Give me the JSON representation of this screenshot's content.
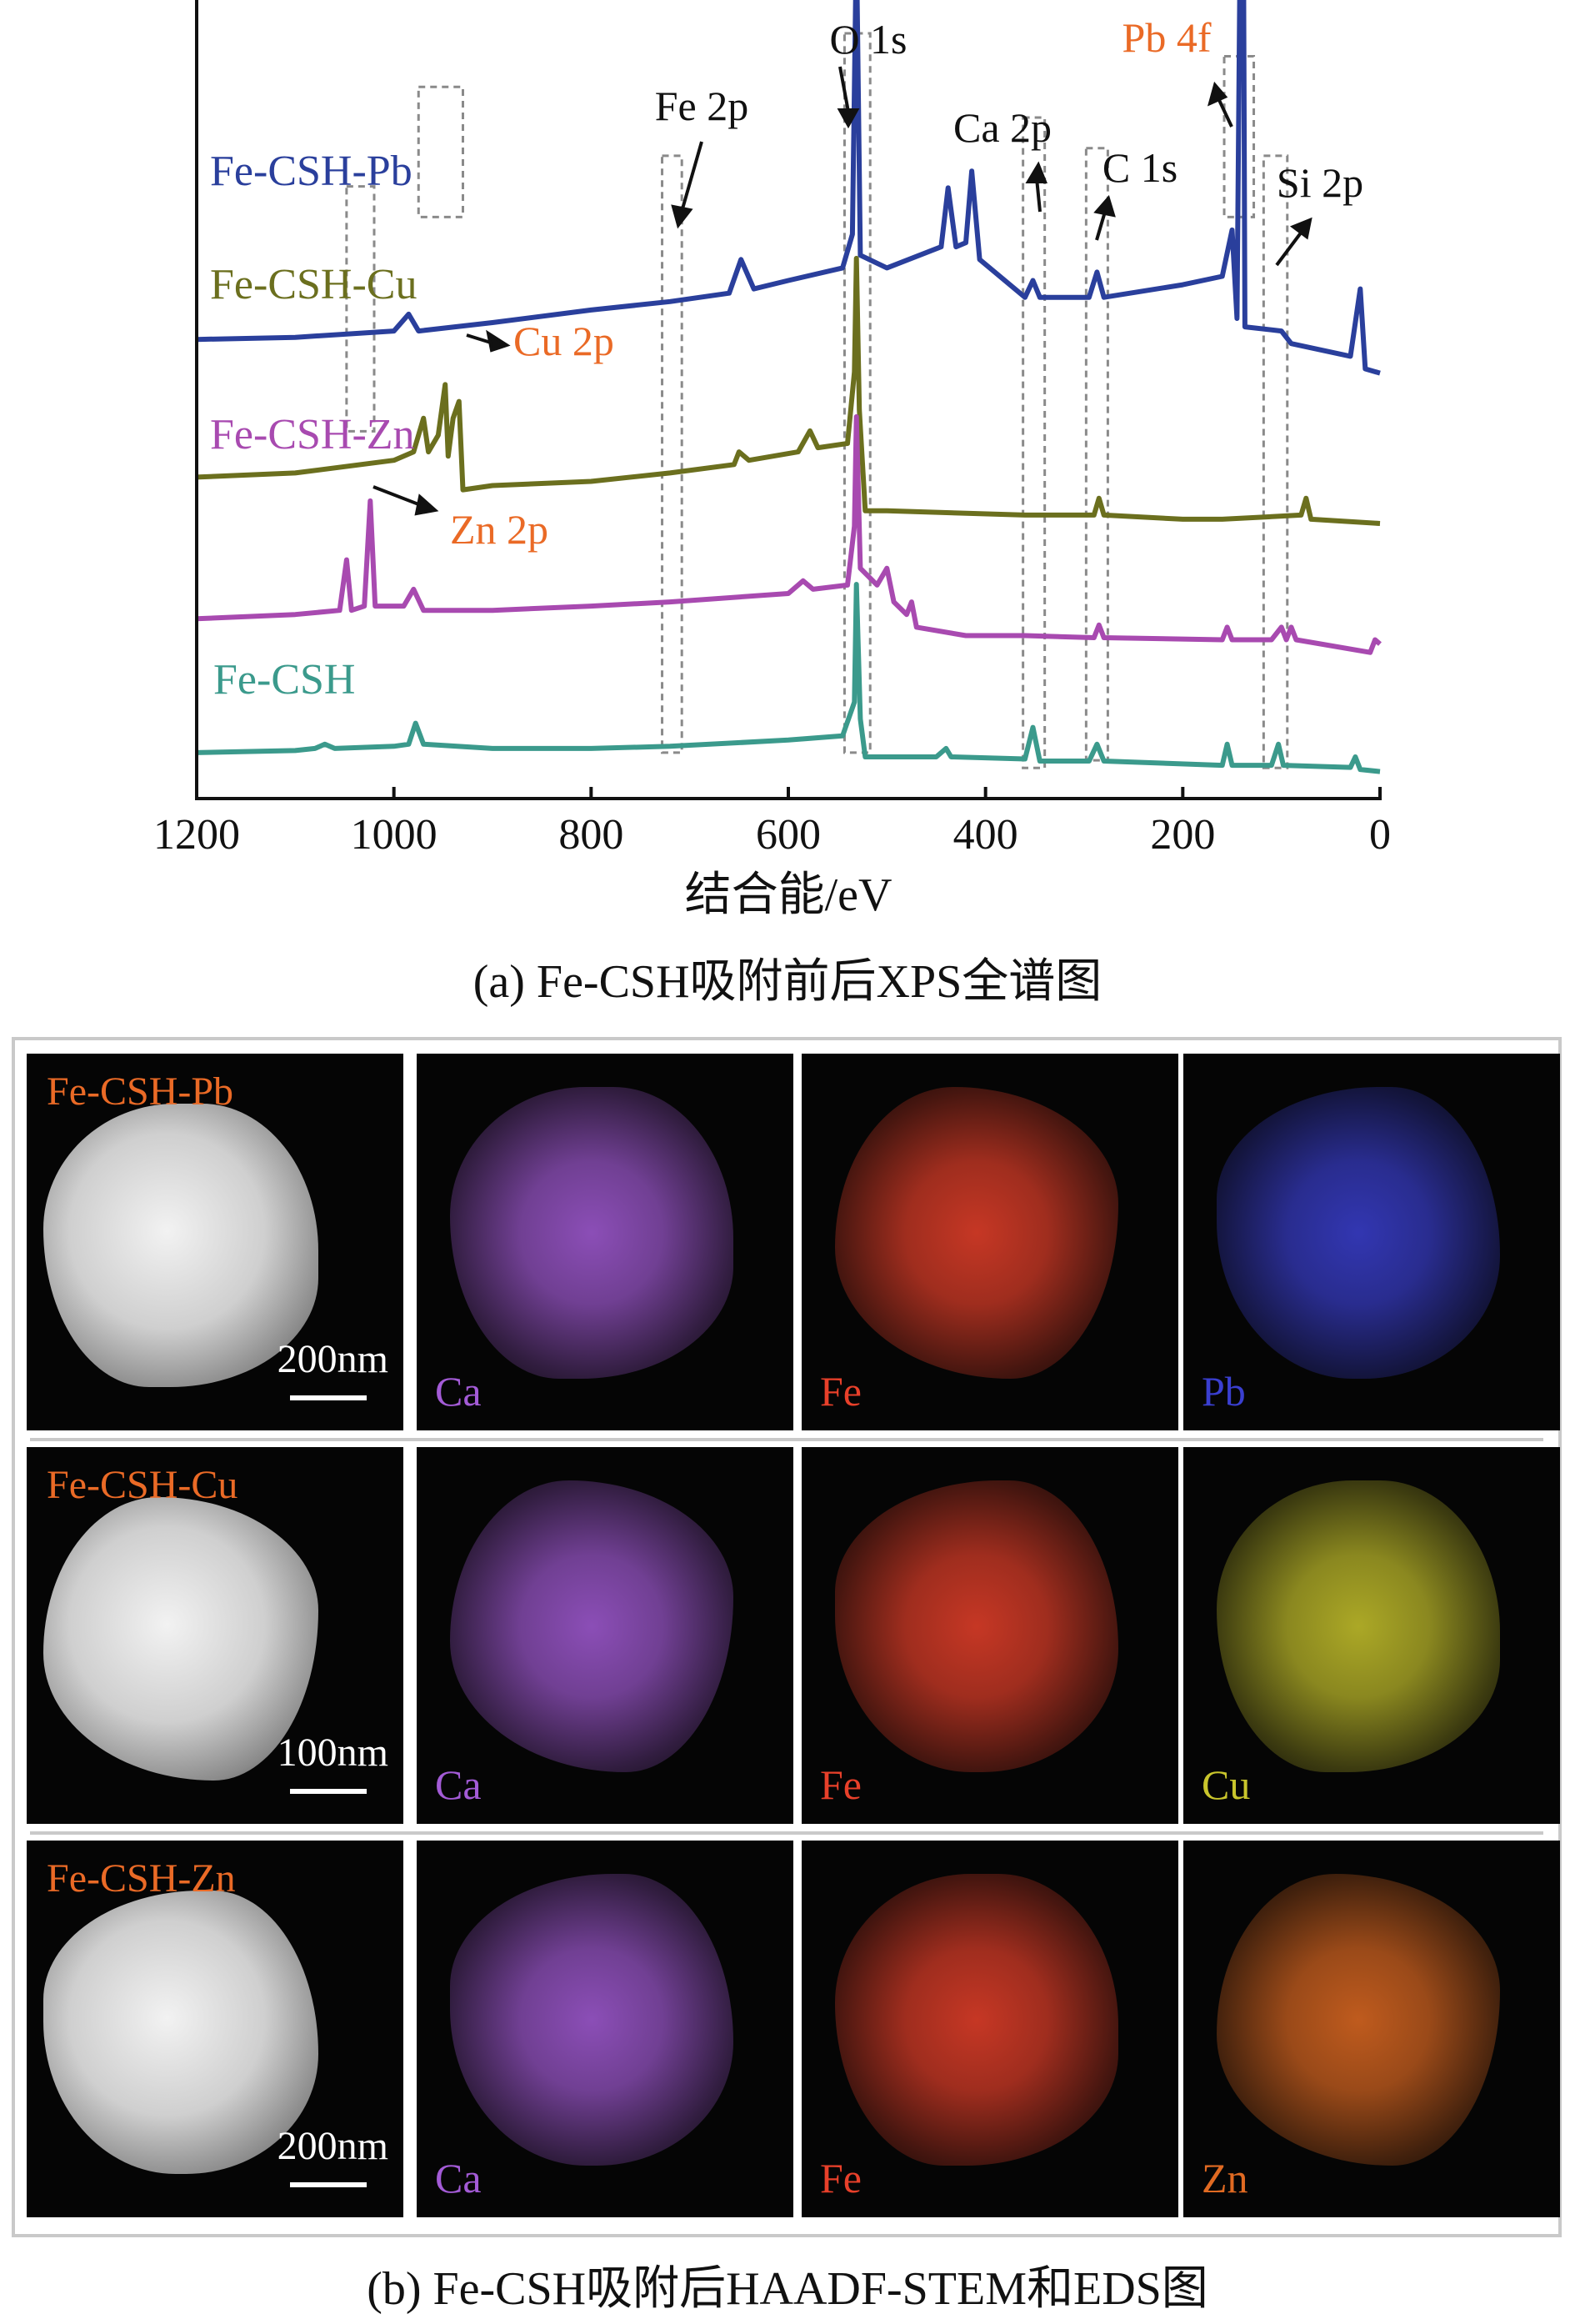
{
  "chart_data": {
    "type": "line",
    "xlabel": "结合能/eV",
    "x_reversed": true,
    "xlim": [
      1200,
      0
    ],
    "xticks": [
      1200,
      1000,
      800,
      600,
      400,
      200,
      0
    ],
    "y_ticks_shown": false,
    "series": [
      {
        "name": "Fe-CSH-Pb",
        "color": "#2a3f9c",
        "baseline": 0.6,
        "points": [
          [
            1200,
            0.0
          ],
          [
            1100,
            0.005
          ],
          [
            1000,
            0.02
          ],
          [
            985,
            0.06
          ],
          [
            975,
            0.02
          ],
          [
            900,
            0.04
          ],
          [
            800,
            0.07
          ],
          [
            720,
            0.09
          ],
          [
            660,
            0.11
          ],
          [
            648,
            0.19
          ],
          [
            635,
            0.12
          ],
          [
            600,
            0.14
          ],
          [
            545,
            0.17
          ],
          [
            535,
            0.25
          ],
          [
            531,
            0.95
          ],
          [
            527,
            0.2
          ],
          [
            500,
            0.17
          ],
          [
            445,
            0.22
          ],
          [
            438,
            0.36
          ],
          [
            430,
            0.22
          ],
          [
            420,
            0.23
          ],
          [
            414,
            0.4
          ],
          [
            406,
            0.19
          ],
          [
            360,
            0.1
          ],
          [
            352,
            0.14
          ],
          [
            345,
            0.1
          ],
          [
            295,
            0.1
          ],
          [
            287,
            0.16
          ],
          [
            280,
            0.1
          ],
          [
            200,
            0.13
          ],
          [
            160,
            0.15
          ],
          [
            150,
            0.26
          ],
          [
            145,
            0.05
          ],
          [
            142,
            0.9
          ],
          [
            139,
            1.3
          ],
          [
            137,
            0.03
          ],
          [
            100,
            0.02
          ],
          [
            90,
            -0.01
          ],
          [
            30,
            -0.04
          ],
          [
            20,
            0.12
          ],
          [
            15,
            -0.07
          ],
          [
            0,
            -0.08
          ]
        ]
      },
      {
        "name": "Fe-CSH-Cu",
        "color": "#6b6f1e",
        "baseline": 0.42,
        "points": [
          [
            1200,
            0.0
          ],
          [
            1100,
            0.01
          ],
          [
            1000,
            0.04
          ],
          [
            980,
            0.06
          ],
          [
            970,
            0.14
          ],
          [
            965,
            0.06
          ],
          [
            955,
            0.1
          ],
          [
            948,
            0.22
          ],
          [
            945,
            0.05
          ],
          [
            940,
            0.14
          ],
          [
            934,
            0.18
          ],
          [
            930,
            -0.03
          ],
          [
            900,
            -0.02
          ],
          [
            800,
            -0.01
          ],
          [
            720,
            0.01
          ],
          [
            655,
            0.03
          ],
          [
            650,
            0.06
          ],
          [
            640,
            0.04
          ],
          [
            590,
            0.06
          ],
          [
            578,
            0.11
          ],
          [
            570,
            0.07
          ],
          [
            540,
            0.08
          ],
          [
            533,
            0.25
          ],
          [
            531,
            0.52
          ],
          [
            528,
            0.16
          ],
          [
            522,
            -0.08
          ],
          [
            500,
            -0.08
          ],
          [
            360,
            -0.09
          ],
          [
            290,
            -0.09
          ],
          [
            285,
            -0.05
          ],
          [
            280,
            -0.09
          ],
          [
            200,
            -0.1
          ],
          [
            160,
            -0.1
          ],
          [
            80,
            -0.09
          ],
          [
            75,
            -0.05
          ],
          [
            70,
            -0.1
          ],
          [
            0,
            -0.11
          ]
        ]
      },
      {
        "name": "Fe-CSH-Zn",
        "color": "#a84ab0",
        "baseline": 0.235,
        "points": [
          [
            1200,
            0.0
          ],
          [
            1100,
            0.01
          ],
          [
            1055,
            0.02
          ],
          [
            1048,
            0.14
          ],
          [
            1043,
            0.02
          ],
          [
            1030,
            0.03
          ],
          [
            1024,
            0.28
          ],
          [
            1019,
            0.03
          ],
          [
            990,
            0.03
          ],
          [
            980,
            0.07
          ],
          [
            970,
            0.02
          ],
          [
            900,
            0.02
          ],
          [
            800,
            0.03
          ],
          [
            720,
            0.04
          ],
          [
            600,
            0.06
          ],
          [
            585,
            0.09
          ],
          [
            575,
            0.07
          ],
          [
            540,
            0.08
          ],
          [
            533,
            0.22
          ],
          [
            531,
            0.48
          ],
          [
            527,
            0.12
          ],
          [
            510,
            0.08
          ],
          [
            500,
            0.12
          ],
          [
            493,
            0.04
          ],
          [
            480,
            0.01
          ],
          [
            475,
            0.04
          ],
          [
            470,
            -0.02
          ],
          [
            420,
            -0.04
          ],
          [
            360,
            -0.04
          ],
          [
            290,
            -0.045
          ],
          [
            285,
            -0.015
          ],
          [
            280,
            -0.045
          ],
          [
            160,
            -0.05
          ],
          [
            155,
            -0.02
          ],
          [
            150,
            -0.05
          ],
          [
            110,
            -0.05
          ],
          [
            100,
            -0.02
          ],
          [
            95,
            -0.05
          ],
          [
            90,
            -0.02
          ],
          [
            85,
            -0.05
          ],
          [
            10,
            -0.08
          ],
          [
            5,
            -0.05
          ],
          [
            0,
            -0.06
          ]
        ]
      },
      {
        "name": "Fe-CSH",
        "color": "#3b9a8c",
        "baseline": 0.06,
        "points": [
          [
            1200,
            0.0
          ],
          [
            1100,
            0.005
          ],
          [
            1080,
            0.01
          ],
          [
            1070,
            0.02
          ],
          [
            1060,
            0.01
          ],
          [
            1000,
            0.015
          ],
          [
            985,
            0.02
          ],
          [
            978,
            0.07
          ],
          [
            970,
            0.02
          ],
          [
            900,
            0.01
          ],
          [
            800,
            0.01
          ],
          [
            720,
            0.015
          ],
          [
            600,
            0.03
          ],
          [
            545,
            0.04
          ],
          [
            533,
            0.12
          ],
          [
            531,
            0.4
          ],
          [
            527,
            0.08
          ],
          [
            522,
            -0.01
          ],
          [
            450,
            -0.01
          ],
          [
            440,
            0.01
          ],
          [
            435,
            -0.01
          ],
          [
            360,
            -0.015
          ],
          [
            352,
            0.06
          ],
          [
            345,
            -0.02
          ],
          [
            295,
            -0.02
          ],
          [
            287,
            0.02
          ],
          [
            280,
            -0.02
          ],
          [
            160,
            -0.03
          ],
          [
            155,
            0.02
          ],
          [
            150,
            -0.03
          ],
          [
            110,
            -0.03
          ],
          [
            103,
            0.02
          ],
          [
            98,
            -0.03
          ],
          [
            30,
            -0.035
          ],
          [
            25,
            -0.01
          ],
          [
            20,
            -0.04
          ],
          [
            0,
            -0.045
          ]
        ]
      }
    ],
    "annotations": [
      {
        "text": "O 1s",
        "color": "#111111"
      },
      {
        "text": "Fe 2p",
        "color": "#111111"
      },
      {
        "text": "Ca 2p",
        "color": "#111111"
      },
      {
        "text": "C 1s",
        "color": "#111111"
      },
      {
        "text": "Pb 4f",
        "color": "#ea6a26"
      },
      {
        "text": "Si 2p",
        "color": "#111111"
      },
      {
        "text": "Cu 2p",
        "color": "#ea6a26"
      },
      {
        "text": "Zn 2p",
        "color": "#ea6a26"
      }
    ]
  },
  "captions": {
    "a": "(a) Fe-CSH吸附前后XPS全谱图",
    "b": "(b) Fe-CSH吸附后HAADF-STEM和EDS图"
  },
  "eds_rows": [
    {
      "sample": "Fe-CSH-Pb",
      "scale": "200nm",
      "maps": [
        {
          "label": "Ca",
          "color": "#a35bd6"
        },
        {
          "label": "Fe",
          "color": "#e8402a"
        },
        {
          "label": "Pb",
          "color": "#3a3fd0"
        }
      ]
    },
    {
      "sample": "Fe-CSH-Cu",
      "scale": "100nm",
      "maps": [
        {
          "label": "Ca",
          "color": "#a35bd6"
        },
        {
          "label": "Fe",
          "color": "#e8402a"
        },
        {
          "label": "Cu",
          "color": "#c9c52c"
        }
      ]
    },
    {
      "sample": "Fe-CSH-Zn",
      "scale": "200nm",
      "maps": [
        {
          "label": "Ca",
          "color": "#a35bd6"
        },
        {
          "label": "Fe",
          "color": "#e8402a"
        },
        {
          "label": "Zn",
          "color": "#e06a22"
        }
      ]
    }
  ]
}
